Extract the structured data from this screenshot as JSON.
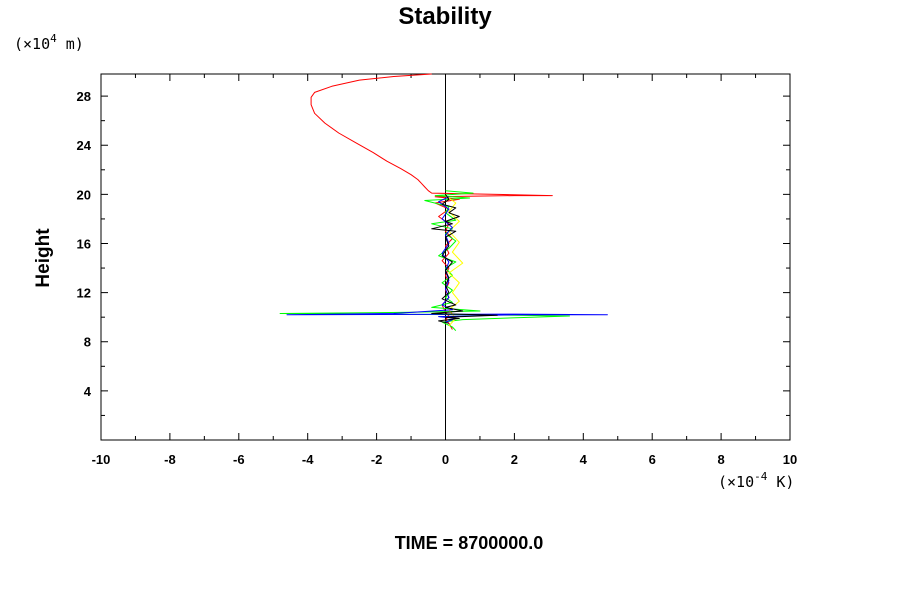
{
  "chart_data": {
    "type": "line",
    "title": "Stability",
    "ylabel": "Height",
    "xlabel": "",
    "y_unit": {
      "base": "(×10",
      "exp": "4",
      "tail": " m)"
    },
    "x_unit": {
      "base": "(×10",
      "exp": "-4",
      "tail": " K)"
    },
    "xlim": [
      -10,
      10
    ],
    "ylim": [
      0,
      29.8
    ],
    "x_ticks": [
      -10,
      -8,
      -6,
      -4,
      -2,
      0,
      2,
      4,
      6,
      8,
      10
    ],
    "y_ticks": [
      4,
      8,
      12,
      16,
      20,
      24,
      28
    ],
    "grid": false,
    "reference_line": {
      "x": 0,
      "color": "#000000"
    },
    "series": [
      {
        "color": "#ff0000",
        "points": [
          [
            0.2,
            9.0
          ],
          [
            0.1,
            9.5
          ],
          [
            0.0,
            9.8
          ],
          [
            0.1,
            10.1
          ],
          [
            0.0,
            10.4
          ],
          [
            -0.1,
            11.0
          ],
          [
            0.1,
            11.6
          ],
          [
            0.0,
            12.2
          ],
          [
            0.1,
            12.8
          ],
          [
            0.0,
            13.4
          ],
          [
            0.1,
            14.0
          ],
          [
            -0.1,
            14.6
          ],
          [
            0.1,
            15.2
          ],
          [
            0.0,
            15.8
          ],
          [
            0.2,
            16.4
          ],
          [
            0.0,
            17.0
          ],
          [
            0.1,
            17.6
          ],
          [
            -0.2,
            18.2
          ],
          [
            0.1,
            18.8
          ],
          [
            -0.3,
            19.3
          ],
          [
            0.4,
            19.6
          ],
          [
            -0.3,
            19.8
          ],
          [
            2.0,
            19.9
          ],
          [
            3.1,
            19.9
          ],
          [
            1.5,
            20.0
          ],
          [
            -0.4,
            20.1
          ],
          [
            -0.5,
            20.3
          ],
          [
            -0.6,
            20.6
          ],
          [
            -0.7,
            20.9
          ],
          [
            -0.8,
            21.2
          ],
          [
            -1.0,
            21.6
          ],
          [
            -1.3,
            22.1
          ],
          [
            -1.7,
            22.7
          ],
          [
            -2.1,
            23.4
          ],
          [
            -2.6,
            24.2
          ],
          [
            -3.1,
            25.0
          ],
          [
            -3.5,
            25.8
          ],
          [
            -3.8,
            26.6
          ],
          [
            -3.9,
            27.3
          ],
          [
            -3.9,
            27.9
          ],
          [
            -3.8,
            28.3
          ],
          [
            -3.3,
            28.8
          ],
          [
            -2.5,
            29.3
          ],
          [
            -1.5,
            29.6
          ],
          [
            -0.4,
            29.8
          ]
        ]
      },
      {
        "color": "#00ff00",
        "points": [
          [
            0.3,
            8.9
          ],
          [
            0.2,
            9.2
          ],
          [
            -0.1,
            9.6
          ],
          [
            0.5,
            9.8
          ],
          [
            2.5,
            10.0
          ],
          [
            3.6,
            10.1
          ],
          [
            1.0,
            10.2
          ],
          [
            -4.8,
            10.3
          ],
          [
            -1.0,
            10.4
          ],
          [
            1.0,
            10.5
          ],
          [
            -0.4,
            10.8
          ],
          [
            0.2,
            11.2
          ],
          [
            0.0,
            11.6
          ],
          [
            0.2,
            12.2
          ],
          [
            -0.1,
            12.8
          ],
          [
            0.2,
            13.4
          ],
          [
            0.0,
            14.0
          ],
          [
            0.3,
            14.5
          ],
          [
            -0.2,
            15.0
          ],
          [
            0.1,
            15.6
          ],
          [
            0.3,
            16.2
          ],
          [
            0.0,
            16.8
          ],
          [
            0.2,
            17.2
          ],
          [
            -0.4,
            17.6
          ],
          [
            0.3,
            17.9
          ],
          [
            0.0,
            18.5
          ],
          [
            0.1,
            19.0
          ],
          [
            -0.6,
            19.5
          ],
          [
            0.7,
            19.7
          ],
          [
            -0.3,
            19.9
          ],
          [
            0.8,
            20.1
          ],
          [
            0.0,
            20.3
          ]
        ]
      },
      {
        "color": "#ffff00",
        "points": [
          [
            0.1,
            9.3
          ],
          [
            0.3,
            9.9
          ],
          [
            0.1,
            10.6
          ],
          [
            0.4,
            11.3
          ],
          [
            0.2,
            12.0
          ],
          [
            0.4,
            12.8
          ],
          [
            0.1,
            13.6
          ],
          [
            0.5,
            14.4
          ],
          [
            0.2,
            15.3
          ],
          [
            0.4,
            16.1
          ],
          [
            0.1,
            17.0
          ],
          [
            0.4,
            17.8
          ],
          [
            0.1,
            18.6
          ],
          [
            0.3,
            19.3
          ],
          [
            0.0,
            19.9
          ]
        ]
      },
      {
        "color": "#0000ff",
        "points": [
          [
            0.0,
            9.6
          ],
          [
            0.3,
            9.9
          ],
          [
            -0.2,
            10.05
          ],
          [
            2.0,
            10.2
          ],
          [
            4.7,
            10.2
          ],
          [
            2.0,
            10.25
          ],
          [
            -4.6,
            10.2
          ],
          [
            -1.5,
            10.3
          ],
          [
            0.2,
            10.6
          ],
          [
            -0.1,
            11.0
          ],
          [
            0.1,
            11.6
          ],
          [
            0.0,
            12.3
          ],
          [
            0.1,
            13.0
          ],
          [
            0.0,
            13.8
          ],
          [
            0.1,
            14.5
          ],
          [
            -0.1,
            15.2
          ],
          [
            0.1,
            16.0
          ],
          [
            0.0,
            16.7
          ],
          [
            0.2,
            17.3
          ],
          [
            -0.1,
            18.0
          ],
          [
            0.1,
            18.8
          ],
          [
            -0.2,
            19.4
          ],
          [
            0.1,
            19.8
          ]
        ]
      },
      {
        "color": "#000000",
        "points": [
          [
            0.1,
            9.5
          ],
          [
            -0.2,
            9.7
          ],
          [
            0.4,
            9.9
          ],
          [
            0.0,
            10.0
          ],
          [
            1.5,
            10.15
          ],
          [
            -0.4,
            10.3
          ],
          [
            0.5,
            10.5
          ],
          [
            0.0,
            10.8
          ],
          [
            0.3,
            11.0
          ],
          [
            -0.1,
            11.5
          ],
          [
            0.1,
            12.0
          ],
          [
            0.0,
            12.6
          ],
          [
            0.1,
            13.2
          ],
          [
            0.0,
            13.8
          ],
          [
            0.2,
            14.5
          ],
          [
            -0.1,
            15.0
          ],
          [
            0.1,
            15.8
          ],
          [
            0.0,
            16.5
          ],
          [
            0.3,
            17.0
          ],
          [
            -0.4,
            17.2
          ],
          [
            0.2,
            17.6
          ],
          [
            0.0,
            17.8
          ],
          [
            0.4,
            18.2
          ],
          [
            0.1,
            18.5
          ],
          [
            0.3,
            18.9
          ],
          [
            -0.1,
            19.2
          ],
          [
            0.1,
            19.6
          ],
          [
            0.0,
            20.0
          ]
        ]
      }
    ],
    "footer": "TIME = 8700000.0"
  }
}
